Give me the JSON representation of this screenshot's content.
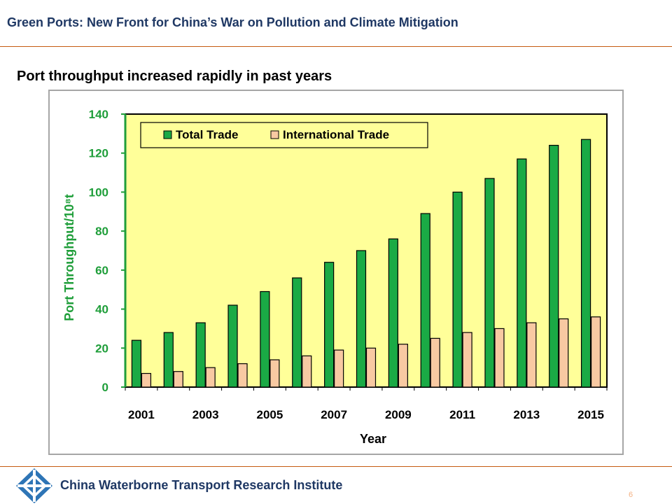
{
  "header": {
    "title": "Green Ports: New Front for China’s War on Pollution and Climate Mitigation"
  },
  "slide": {
    "subtitle": "Port throughput increased rapidly in past years"
  },
  "footer": {
    "organization": "China Waterborne Transport Research Institute",
    "page_number": "6"
  },
  "colors": {
    "accent_rule": "#c55a11",
    "title_text": "#1f3864",
    "plot_background": "#ffff99",
    "axis_text": "#1f9e3a",
    "total_trade": "#1aaa45",
    "international_trade": "#f8c9a2"
  },
  "chart_data": {
    "type": "bar",
    "title": "",
    "xlabel": "Year",
    "ylabel": "Port Throughput/10⁸t",
    "ylim": [
      0,
      140
    ],
    "yticks": [
      0,
      20,
      40,
      60,
      80,
      100,
      120,
      140
    ],
    "categories": [
      "2001",
      "2002",
      "2003",
      "2004",
      "2005",
      "2006",
      "2007",
      "2008",
      "2009",
      "2010",
      "2011",
      "2012",
      "2013",
      "2014",
      "2015"
    ],
    "x_tick_labels": [
      "2001",
      "",
      "2003",
      "",
      "2005",
      "",
      "2007",
      "",
      "2009",
      "",
      "2011",
      "",
      "2013",
      "",
      "2015"
    ],
    "series": [
      {
        "name": "Total Trade",
        "values": [
          24,
          28,
          33,
          42,
          49,
          56,
          64,
          70,
          76,
          89,
          100,
          107,
          117,
          124,
          127
        ]
      },
      {
        "name": "International Trade",
        "values": [
          7,
          8,
          10,
          12,
          14,
          16,
          19,
          20,
          22,
          25,
          28,
          30,
          33,
          35,
          36
        ]
      }
    ],
    "legend_position": "top",
    "grid": false
  }
}
